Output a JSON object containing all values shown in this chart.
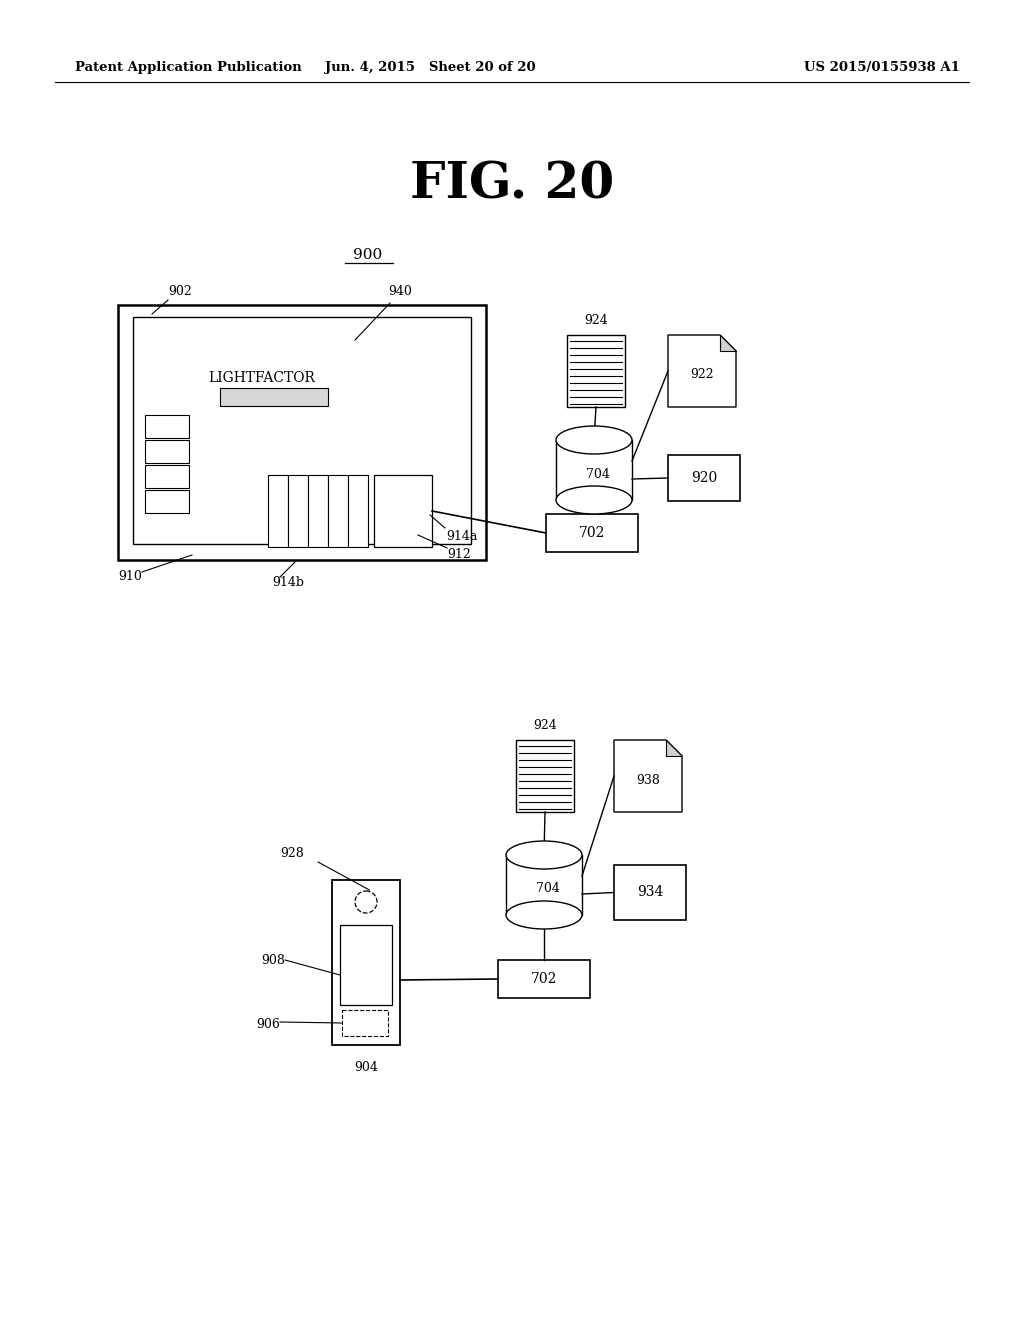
{
  "bg_color": "#ffffff",
  "header_left": "Patent Application Publication",
  "header_mid": "Jun. 4, 2015   Sheet 20 of 20",
  "header_right": "US 2015/0155938 A1",
  "fig_title": "FIG. 20"
}
